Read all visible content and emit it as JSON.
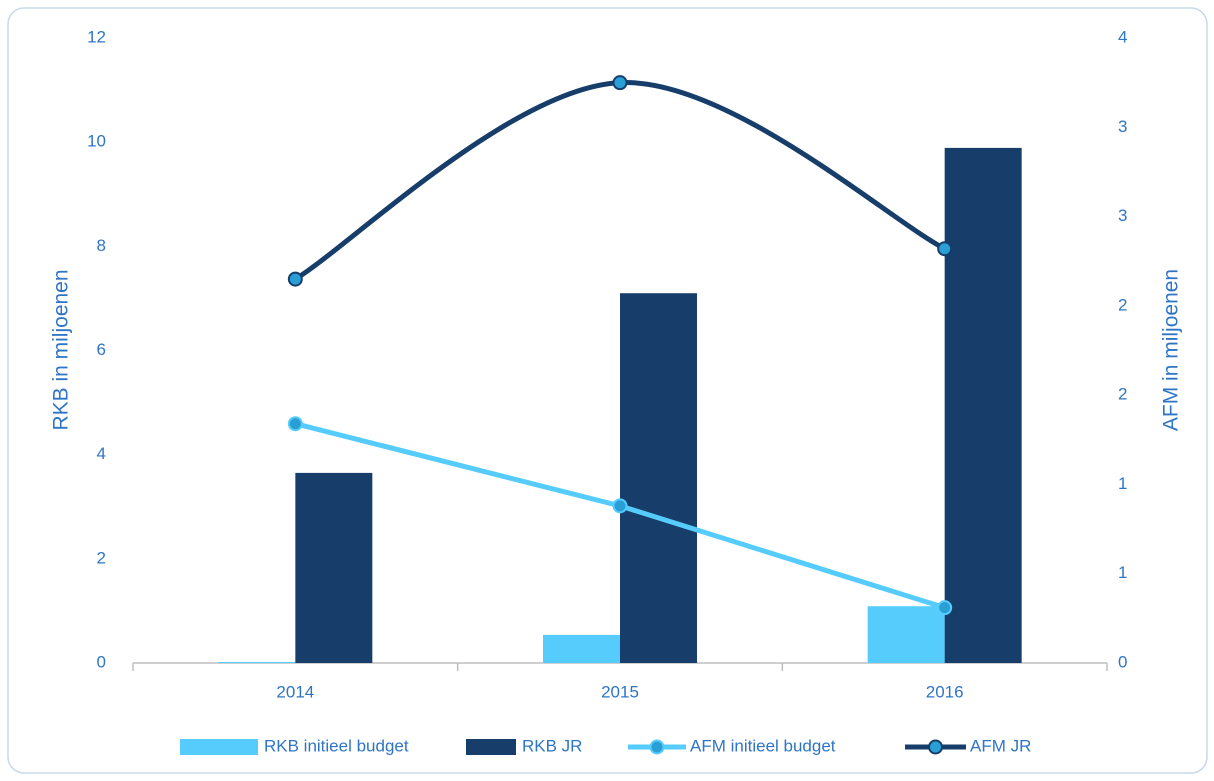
{
  "chart_data": {
    "type": "bar",
    "categories": [
      "2014",
      "2015",
      "2016"
    ],
    "y_label": "RKB in miljoenen",
    "y2_label": "AFM in miljoenen",
    "ylim": [
      0,
      12
    ],
    "yticks": [
      0,
      2,
      4,
      6,
      8,
      10,
      12
    ],
    "y2lim": [
      0,
      3.5
    ],
    "y2ticks": [
      0,
      {
        "value": 0.5,
        "label": "1"
      },
      1,
      {
        "value": 1.5,
        "label": "2"
      },
      2,
      {
        "value": 2.5,
        "label": "3"
      },
      3,
      {
        "value": 3.5,
        "label": "4"
      }
    ],
    "series": [
      {
        "name": "RKB initieel budget",
        "type": "bar",
        "color": "#55ccfc",
        "values": [
          0.02,
          0.54,
          1.09
        ]
      },
      {
        "name": "RKB JR",
        "type": "bar",
        "color": "#173e6a",
        "values": [
          3.65,
          7.1,
          9.89
        ]
      },
      {
        "name": "AFM initieel budget",
        "type": "line",
        "axis": "y2",
        "color": "#55ccfc",
        "smooth": false,
        "values": [
          1.34,
          0.88,
          0.31
        ]
      },
      {
        "name": "AFM JR",
        "type": "line",
        "axis": "y2",
        "color": "#173e6a",
        "smooth": true,
        "values": [
          2.15,
          3.25,
          2.32
        ]
      }
    ]
  }
}
